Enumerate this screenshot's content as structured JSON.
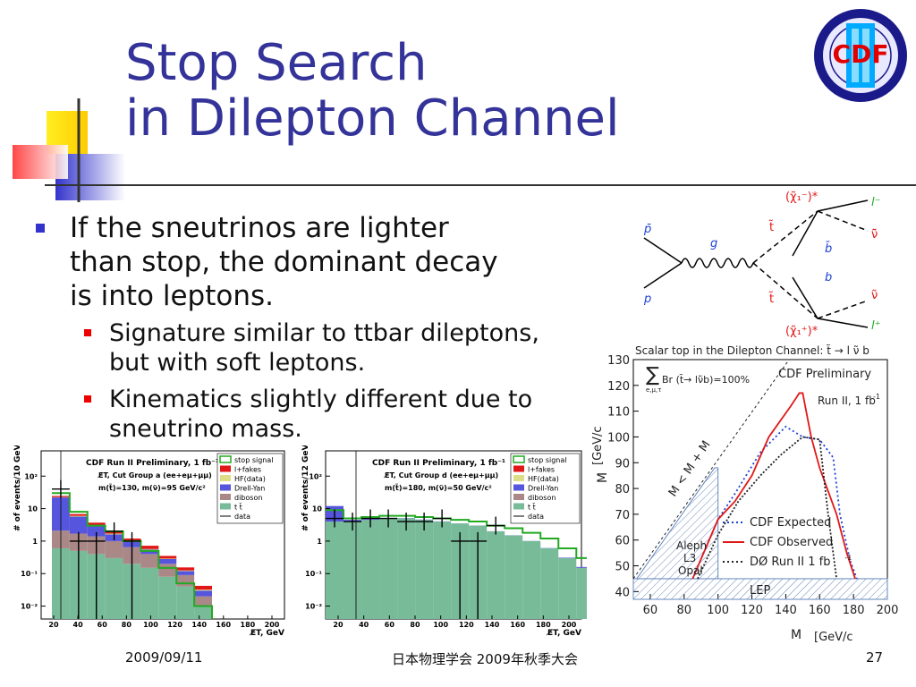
{
  "slide": {
    "title_line1": "Stop Search",
    "title_line2": "in Dilepton Channel",
    "bullet_main": [
      "If the sneutrinos are lighter",
      "than stop, the dominant decay",
      "is into leptons."
    ],
    "sub_bullets": [
      [
        "Signature similar to ttbar dileptons,",
        "but with soft leptons."
      ],
      [
        "Kinematics slightly different due to",
        "sneutrino mass."
      ]
    ],
    "footer_date": "2009/09/11",
    "footer_center": "日本物理学会 2009年秋季大会",
    "page_number": "27",
    "logo_text": "CDF",
    "logo_roman": "II"
  },
  "feynman": {
    "labels": [
      "p̄",
      "p",
      "g",
      "t̃",
      "t̃",
      "(χ̃₁⁻)*",
      "(χ̃₁⁺)*",
      "b̄",
      "b",
      "l⁻",
      "ν̃̄",
      "ν̃",
      "l⁺"
    ]
  },
  "exclusion_plot": {
    "header": "Scalar top in the Dilepton Channel: t̃ → l ν̃ b",
    "formula": "Br (t̃→ lν̃b)=100%",
    "sum_sub": "e,μ,τ",
    "preliminary": "CDF Preliminary",
    "run": "Run II, 1 fb",
    "run_sup": "-1",
    "ylabel": "M",
    "ylabel_unit": "[GeV/c",
    "xlabel": "M",
    "xlabel_unit": "[GeV/c",
    "diag_label": "M  < M  + M",
    "lep_label": "LEP",
    "aleph": [
      "Aleph",
      "L3",
      "Opal"
    ],
    "legend": [
      {
        "name": "CDF Expected",
        "color": "#1a3fd6",
        "style": "dotted"
      },
      {
        "name": "CDF Observed",
        "color": "#e01818",
        "style": "solid"
      },
      {
        "name": "DØ Run II 1 fb",
        "color": "#222222",
        "style": "dotted",
        "sup": "-1"
      }
    ],
    "xticks": [
      "60",
      "80",
      "100",
      "120",
      "140",
      "160",
      "180",
      "200"
    ],
    "yticks": [
      "40",
      "50",
      "60",
      "70",
      "80",
      "90",
      "100",
      "110",
      "120",
      "130"
    ]
  },
  "chart_data": [
    {
      "type": "line",
      "title": "Scalar top in the Dilepton Channel",
      "xlabel": "M_t̃ [GeV/c²]",
      "ylabel": "M_ν̃ [GeV/c²]",
      "xlim": [
        50,
        200
      ],
      "ylim": [
        37,
        130
      ],
      "series": [
        {
          "name": "CDF Expected",
          "x": [
            85,
            100,
            110,
            125,
            140,
            150,
            160,
            168,
            172,
            178,
            182
          ],
          "y": [
            45,
            68,
            78,
            94,
            104,
            100,
            99,
            92,
            70,
            52,
            45
          ]
        },
        {
          "name": "CDF Observed",
          "x": [
            85,
            100,
            110,
            120,
            130,
            143,
            148,
            150,
            155,
            160,
            170,
            176,
            181
          ],
          "y": [
            45,
            68,
            75,
            85,
            100,
            112,
            117,
            117,
            100,
            88,
            70,
            55,
            45
          ]
        },
        {
          "name": "DØ Run II 1 fb⁻¹",
          "x": [
            88,
            100,
            112,
            125,
            137,
            150,
            160,
            165,
            170
          ],
          "y": [
            45,
            62,
            75,
            85,
            93,
            100,
            99,
            70,
            45
          ]
        }
      ]
    },
    {
      "type": "bar",
      "title": "CDF Run II Preliminary, 1 fb⁻¹",
      "xlabel": "E̸T, GeV",
      "ylabel": "# of events/10 GeV",
      "xlim": [
        0,
        200
      ],
      "categories": [
        "20",
        "30",
        "40",
        "50",
        "60",
        "70",
        "80",
        "90",
        "100"
      ],
      "series": [
        {
          "name": "t t̄",
          "values": [
            0.6,
            0.5,
            0.4,
            0.3,
            0.2,
            0.15,
            0.08,
            0.04,
            0.01
          ]
        },
        {
          "name": "diboson",
          "values": [
            1.5,
            1.2,
            1.0,
            0.7,
            0.45,
            0.25,
            0.12,
            0.05,
            0.01
          ]
        },
        {
          "name": "Drell-Yan",
          "values": [
            20,
            4,
            1.5,
            0.6,
            0.3,
            0.15,
            0.08,
            0.03,
            0.01
          ]
        },
        {
          "name": "HF(data)",
          "values": [
            0.5,
            0.3,
            0.2,
            0.1,
            0.05,
            0.02,
            0.01,
            0.005,
            0.002
          ]
        },
        {
          "name": "l+fakes",
          "values": [
            2,
            0.8,
            0.6,
            0.3,
            0.2,
            0.15,
            0.06,
            0.03,
            0.01
          ]
        },
        {
          "name": "stop signal",
          "values": [
            30,
            8,
            3,
            2,
            1,
            0.5,
            0.15,
            0.05,
            0.01
          ]
        },
        {
          "name": "data",
          "values": [
            40,
            1,
            1,
            2,
            1,
            0,
            0,
            0,
            0
          ]
        }
      ],
      "annotations": [
        "E̸T, Cut Group a (ee+eμ+μμ)",
        "m(t̃)=130, m(ν̃)=95 GeV/c²"
      ]
    },
    {
      "type": "bar",
      "title": "CDF Run II Preliminary, 1 fb⁻¹",
      "xlabel": "E̸T, GeV",
      "ylabel": "# of events/12 GeV",
      "xlim": [
        0,
        200
      ],
      "categories": [
        "20",
        "32",
        "44",
        "56",
        "68",
        "80",
        "92",
        "104",
        "116",
        "128",
        "140",
        "152",
        "164",
        "176",
        "188"
      ],
      "series": [
        {
          "name": "t t̄",
          "values": [
            4,
            4,
            4.5,
            5,
            5,
            4.5,
            4,
            3.5,
            3,
            2,
            1.5,
            1,
            0.6,
            0.3,
            0.15
          ]
        },
        {
          "name": "Drell-Yan",
          "values": [
            8,
            0.5,
            0.3,
            0.2,
            0.1,
            0.1,
            0.05,
            0.02,
            0.02,
            0.01,
            0.01,
            0.01,
            0.01,
            0.01,
            0.01
          ]
        },
        {
          "name": "stop signal",
          "values": [
            9,
            5,
            5.5,
            6,
            6,
            5.5,
            5,
            4.5,
            4,
            3,
            2.5,
            1.8,
            1.2,
            0.6,
            0.3
          ]
        },
        {
          "name": "data",
          "values": [
            5,
            4,
            5,
            5,
            4,
            4,
            5,
            1,
            1,
            3,
            0,
            0,
            0,
            0,
            0
          ]
        }
      ],
      "annotations": [
        "E̸T, Cut Group d (ee+eμ+μμ)",
        "m(t̃)=180, m(ν̃)=50 GeV/c²"
      ]
    }
  ],
  "legend_hist": [
    "stop signal",
    "l+fakes",
    "HF(data)",
    "Drell-Yan",
    "diboson",
    "t t̄",
    "data"
  ],
  "colors": {
    "title": "#333399",
    "signal": "#22aa22",
    "fakes": "#e01818",
    "hf": "#dddd88",
    "dy": "#5555dd",
    "diboson": "#aa8888",
    "ttbar": "#77bb99"
  }
}
